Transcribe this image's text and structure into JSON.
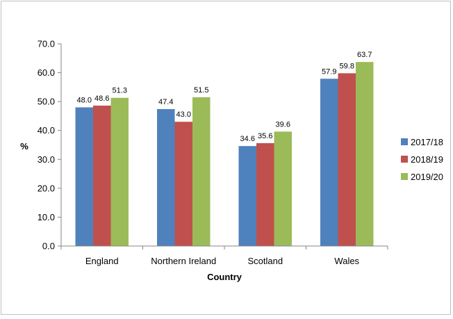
{
  "chart_data": {
    "type": "bar",
    "title": "",
    "xlabel": "Country",
    "ylabel": "%",
    "categories": [
      "England",
      "Northern Ireland",
      "Scotland",
      "Wales"
    ],
    "series": [
      {
        "name": "2017/18",
        "color": "#4f81bd",
        "values": [
          48.0,
          47.4,
          34.6,
          57.9
        ]
      },
      {
        "name": "2018/19",
        "color": "#c0504d",
        "values": [
          48.6,
          43.0,
          35.6,
          59.8
        ]
      },
      {
        "name": "2019/20",
        "color": "#9bbb59",
        "values": [
          51.3,
          51.5,
          39.6,
          63.7
        ]
      }
    ],
    "ylim": [
      0,
      70
    ],
    "yticks": [
      "0.0",
      "10.0",
      "20.0",
      "30.0",
      "40.0",
      "50.0",
      "60.0",
      "70.0"
    ],
    "value_format": "1 decimal",
    "grid": false,
    "legend": "right"
  }
}
